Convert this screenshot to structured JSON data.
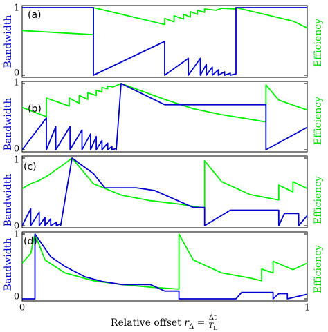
{
  "chart_data": {
    "type": "line",
    "xlabel": "Relative offset",
    "xlabel_symbol": "r",
    "xlabel_subscript": "Δ",
    "xlabel_fraction_num": "Δt",
    "xlabel_fraction_den": "T",
    "xlabel_fraction_den_sub": "L",
    "xlim": [
      0,
      1
    ],
    "x_ticks": [
      "0",
      "1"
    ],
    "colors": {
      "bandwidth": "#0000cc",
      "efficiency": "#00ee00"
    },
    "panels": [
      {
        "label": "(a)",
        "ylabel_left": "Bandwidth",
        "ylabel_right": "Efficiency",
        "ylim": [
          0,
          1
        ],
        "y_ticks": [
          "0",
          "1"
        ],
        "bandwidth": [
          [
            0,
            1
          ],
          [
            0.25,
            1
          ],
          [
            0.25,
            0
          ],
          [
            0.5,
            0.5
          ],
          [
            0.5,
            0
          ],
          [
            0.583,
            0.25
          ],
          [
            0.583,
            0
          ],
          [
            0.625,
            0.25
          ],
          [
            0.625,
            0
          ],
          [
            0.646,
            0.16
          ],
          [
            0.646,
            0
          ],
          [
            0.667,
            0.12
          ],
          [
            0.667,
            0
          ],
          [
            0.688,
            0.08
          ],
          [
            0.688,
            0
          ],
          [
            0.71,
            0.05
          ],
          [
            0.71,
            0
          ],
          [
            0.73,
            0.03
          ],
          [
            0.73,
            0
          ],
          [
            0.75,
            0.02
          ],
          [
            0.75,
            1
          ],
          [
            1,
            1
          ]
        ],
        "efficiency": [
          [
            0,
            0.66
          ],
          [
            0.25,
            0.6
          ],
          [
            0.25,
            1
          ],
          [
            0.5,
            0.75
          ],
          [
            0.5,
            0.84
          ],
          [
            0.533,
            0.79
          ],
          [
            0.533,
            0.88
          ],
          [
            0.566,
            0.83
          ],
          [
            0.566,
            0.9
          ],
          [
            0.59,
            0.86
          ],
          [
            0.59,
            0.94
          ],
          [
            0.615,
            0.9
          ],
          [
            0.615,
            0.96
          ],
          [
            0.64,
            0.93
          ],
          [
            0.64,
            0.98
          ],
          [
            0.68,
            0.96
          ],
          [
            0.7,
            0.99
          ],
          [
            0.75,
            0.98
          ],
          [
            0.75,
            1
          ],
          [
            0.85,
            0.9
          ],
          [
            0.95,
            0.8
          ],
          [
            1,
            0.7
          ]
        ]
      },
      {
        "label": "(b)",
        "ylabel_left": "Bandwidth",
        "ylabel_right": "Efficiency",
        "ylim": [
          0,
          1
        ],
        "y_ticks": [
          "0",
          "1"
        ],
        "bandwidth": [
          [
            0,
            0
          ],
          [
            0.085,
            0.48
          ],
          [
            0.085,
            0
          ],
          [
            0.118,
            0.35
          ],
          [
            0.118,
            0
          ],
          [
            0.168,
            0.35
          ],
          [
            0.168,
            0
          ],
          [
            0.21,
            0.3
          ],
          [
            0.21,
            0
          ],
          [
            0.24,
            0.24
          ],
          [
            0.24,
            0
          ],
          [
            0.26,
            0.2
          ],
          [
            0.26,
            0
          ],
          [
            0.28,
            0.14
          ],
          [
            0.28,
            0
          ],
          [
            0.3,
            0.1
          ],
          [
            0.3,
            0
          ],
          [
            0.315,
            0.05
          ],
          [
            0.315,
            0
          ],
          [
            0.33,
            0.02
          ],
          [
            0.33,
            0
          ],
          [
            0.347,
            1
          ],
          [
            0.5,
            0.68
          ],
          [
            0.855,
            0.68
          ],
          [
            0.855,
            0
          ],
          [
            1,
            0.34
          ]
        ],
        "efficiency": [
          [
            0,
            0.64
          ],
          [
            0.085,
            0.5
          ],
          [
            0.085,
            0.78
          ],
          [
            0.165,
            0.66
          ],
          [
            0.165,
            0.78
          ],
          [
            0.2,
            0.7
          ],
          [
            0.2,
            0.82
          ],
          [
            0.23,
            0.76
          ],
          [
            0.23,
            0.86
          ],
          [
            0.26,
            0.82
          ],
          [
            0.26,
            0.9
          ],
          [
            0.28,
            0.87
          ],
          [
            0.28,
            0.94
          ],
          [
            0.3,
            0.92
          ],
          [
            0.3,
            0.96
          ],
          [
            0.32,
            0.95
          ],
          [
            0.347,
            1
          ],
          [
            0.5,
            0.76
          ],
          [
            0.6,
            0.62
          ],
          [
            0.7,
            0.53
          ],
          [
            0.8,
            0.46
          ],
          [
            0.855,
            0.42
          ],
          [
            0.855,
            0.98
          ],
          [
            0.9,
            0.75
          ],
          [
            1,
            0.6
          ]
        ]
      },
      {
        "label": "(c)",
        "ylabel_left": "Bandwidth",
        "ylabel_right": "Efficiency",
        "ylim": [
          0,
          1
        ],
        "y_ticks": [
          "0",
          "1"
        ],
        "bandwidth": [
          [
            0,
            0
          ],
          [
            0.03,
            0.25
          ],
          [
            0.03,
            0
          ],
          [
            0.06,
            0.2
          ],
          [
            0.06,
            0
          ],
          [
            0.08,
            0.12
          ],
          [
            0.08,
            0
          ],
          [
            0.1,
            0.1
          ],
          [
            0.1,
            0
          ],
          [
            0.12,
            0.05
          ],
          [
            0.12,
            0
          ],
          [
            0.135,
            0.03
          ],
          [
            0.135,
            0
          ],
          [
            0.175,
            1
          ],
          [
            0.25,
            0.77
          ],
          [
            0.29,
            0.56
          ],
          [
            0.4,
            0.56
          ],
          [
            0.465,
            0.52
          ],
          [
            0.6,
            0.27
          ],
          [
            0.64,
            0.27
          ],
          [
            0.64,
            0
          ],
          [
            0.73,
            0.23
          ],
          [
            0.9,
            0.23
          ],
          [
            0.9,
            0
          ],
          [
            0.92,
            0.18
          ],
          [
            0.97,
            0.18
          ],
          [
            0.97,
            0
          ],
          [
            1,
            0.15
          ]
        ],
        "efficiency": [
          [
            0,
            0.55
          ],
          [
            0.03,
            0.62
          ],
          [
            0.06,
            0.67
          ],
          [
            0.09,
            0.74
          ],
          [
            0.12,
            0.83
          ],
          [
            0.15,
            0.92
          ],
          [
            0.175,
            1
          ],
          [
            0.25,
            0.62
          ],
          [
            0.35,
            0.45
          ],
          [
            0.45,
            0.37
          ],
          [
            0.55,
            0.32
          ],
          [
            0.64,
            0.26
          ],
          [
            0.64,
            0.96
          ],
          [
            0.7,
            0.65
          ],
          [
            0.8,
            0.46
          ],
          [
            0.9,
            0.38
          ],
          [
            0.9,
            0.6
          ],
          [
            0.95,
            0.5
          ],
          [
            0.95,
            0.65
          ],
          [
            1,
            0.55
          ]
        ]
      },
      {
        "label": "(d)",
        "ylabel_left": "Bandwidth",
        "ylabel_right": "Efficiency",
        "ylim": [
          0,
          1
        ],
        "y_ticks": [
          "0",
          "1"
        ],
        "bandwidth": [
          [
            0,
            0
          ],
          [
            0.045,
            0
          ],
          [
            0.045,
            1
          ],
          [
            0.1,
            0.65
          ],
          [
            0.15,
            0.5
          ],
          [
            0.22,
            0.34
          ],
          [
            0.28,
            0.27
          ],
          [
            0.35,
            0.22
          ],
          [
            0.45,
            0.22
          ],
          [
            0.5,
            0.12
          ],
          [
            0.55,
            0.12
          ],
          [
            0.55,
            0
          ],
          [
            0.75,
            0
          ],
          [
            0.77,
            0.1
          ],
          [
            0.88,
            0.1
          ],
          [
            0.88,
            0
          ],
          [
            0.9,
            0.08
          ],
          [
            0.93,
            0.08
          ],
          [
            0.93,
            0
          ],
          [
            1,
            0.07
          ]
        ],
        "efficiency": [
          [
            0,
            0.55
          ],
          [
            0.03,
            0.7
          ],
          [
            0.045,
            1
          ],
          [
            0.08,
            0.6
          ],
          [
            0.15,
            0.4
          ],
          [
            0.25,
            0.28
          ],
          [
            0.35,
            0.22
          ],
          [
            0.45,
            0.18
          ],
          [
            0.55,
            0.15
          ],
          [
            0.55,
            1
          ],
          [
            0.6,
            0.6
          ],
          [
            0.7,
            0.4
          ],
          [
            0.8,
            0.32
          ],
          [
            0.84,
            0.28
          ],
          [
            0.84,
            0.46
          ],
          [
            0.88,
            0.4
          ],
          [
            0.88,
            0.58
          ],
          [
            0.95,
            0.45
          ],
          [
            1,
            0.55
          ]
        ]
      }
    ]
  }
}
